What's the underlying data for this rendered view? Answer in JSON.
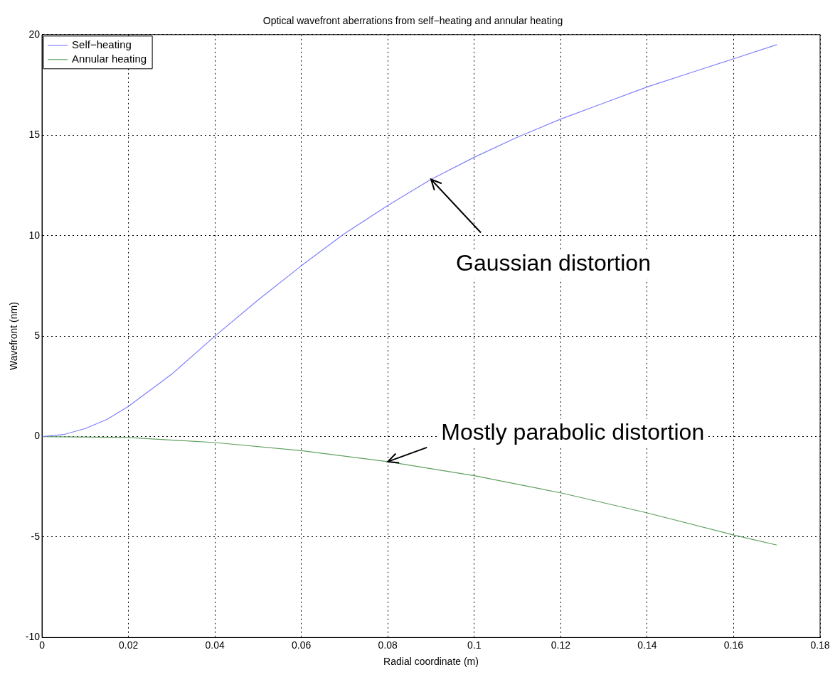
{
  "chart_data": {
    "type": "line",
    "title": "Optical wavefront aberrations from self−heating and annular heating",
    "xlabel": "Radial coordinate (m)",
    "ylabel": "Wavefront (nm)",
    "series": [
      {
        "name": "Self−heating",
        "color": "#7f7fff",
        "x": [
          0,
          0.005,
          0.01,
          0.015,
          0.02,
          0.03,
          0.04,
          0.05,
          0.06,
          0.07,
          0.08,
          0.09,
          0.1,
          0.11,
          0.12,
          0.13,
          0.14,
          0.15,
          0.16,
          0.17
        ],
        "values": [
          0,
          0.1,
          0.4,
          0.85,
          1.5,
          3.1,
          5.0,
          6.8,
          8.5,
          10.1,
          11.5,
          12.8,
          13.9,
          14.9,
          15.8,
          16.6,
          17.4,
          18.1,
          18.8,
          19.5
        ]
      },
      {
        "name": "Annular heating",
        "color": "#5fa05f",
        "x": [
          0,
          0.02,
          0.04,
          0.06,
          0.08,
          0.1,
          0.12,
          0.14,
          0.16,
          0.17
        ],
        "values": [
          0,
          -0.05,
          -0.3,
          -0.7,
          -1.25,
          -1.95,
          -2.8,
          -3.8,
          -4.9,
          -5.4
        ]
      }
    ],
    "xlim": [
      0,
      0.18
    ],
    "xticks": [
      0,
      0.02,
      0.04,
      0.06,
      0.08,
      0.1,
      0.12,
      0.14,
      0.16,
      0.18
    ],
    "ylim": [
      -10,
      20
    ],
    "yticks": [
      -10,
      -5,
      0,
      5,
      10,
      15,
      20
    ],
    "grid": true,
    "legend": "top left",
    "marker": "none",
    "line_style": "solid",
    "annotations": [
      {
        "text": "Gaussian distortion",
        "x": 0.09,
        "y": 12.8
      },
      {
        "text": "Mostly parabolic distortion",
        "x": 0.08,
        "y": -1.25
      }
    ]
  }
}
